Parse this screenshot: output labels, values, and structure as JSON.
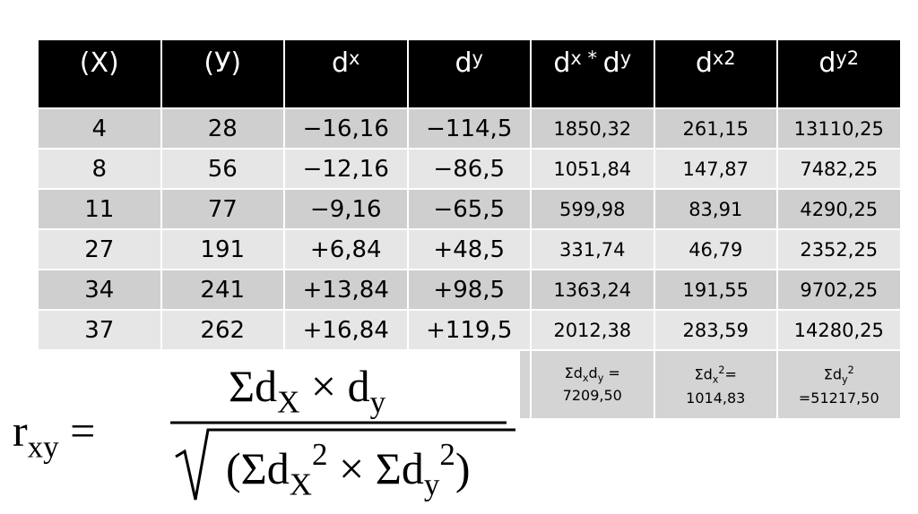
{
  "table": {
    "header": [
      [
        {
          "text": "(X)"
        }
      ],
      [
        {
          "text": "(У)"
        }
      ],
      [
        {
          "text": "d"
        },
        {
          "text": "x",
          "script": "sub"
        }
      ],
      [
        {
          "text": "d"
        },
        {
          "text": "y",
          "script": "sub"
        }
      ],
      [
        {
          "text": "d"
        },
        {
          "text": "x",
          "script": "sub"
        },
        {
          "text": " * ",
          "script": "sub"
        },
        {
          "text": "d"
        },
        {
          "text": "y",
          "script": "sub"
        }
      ],
      [
        {
          "text": "d"
        },
        {
          "text": "x",
          "script": "sub"
        },
        {
          "text": "2",
          "script": "sup"
        }
      ],
      [
        {
          "text": "d"
        },
        {
          "text": "y",
          "script": "sub"
        },
        {
          "text": "2",
          "script": "sup"
        }
      ]
    ],
    "rows": [
      [
        "4",
        "28",
        "−16,16",
        "−114,5",
        "1850,32",
        "261,15",
        "13110,25"
      ],
      [
        "8",
        "56",
        "−12,16",
        "−86,5",
        "1051,84",
        "147,87",
        "7482,25"
      ],
      [
        "11",
        "77",
        "−9,16",
        "−65,5",
        "599,98",
        "83,91",
        "4290,25"
      ],
      [
        "27",
        "191",
        "+6,84",
        "+48,5",
        "331,74",
        "46,79",
        "2352,25"
      ],
      [
        "34",
        "241",
        "+13,84",
        "+98,5",
        "1363,24",
        "191,55",
        "9702,25"
      ],
      [
        "37",
        "262",
        "+16,84",
        "+119,5",
        "2012,38",
        "283,59",
        "14280,25"
      ]
    ],
    "sums": [
      [
        [
          {
            "text": "Σd"
          },
          {
            "text": "x",
            "script": "sub"
          },
          {
            "text": "d"
          },
          {
            "text": "y",
            "script": "sub"
          },
          {
            "text": " ="
          }
        ],
        [
          {
            "text": "7209,50"
          }
        ]
      ],
      [
        [
          {
            "text": "Σd"
          },
          {
            "text": "x",
            "script": "sub"
          },
          {
            "text": "2",
            "script": "sup"
          },
          {
            "text": "="
          }
        ],
        [
          {
            "text": "1014,83"
          }
        ]
      ],
      [
        [
          {
            "text": "Σd"
          },
          {
            "text": "y",
            "script": "sub"
          },
          {
            "text": "2",
            "script": "sup"
          }
        ],
        [
          {
            "text": "=51217,50"
          }
        ]
      ]
    ]
  },
  "formula": {
    "lhs": [
      {
        "text": "r"
      },
      {
        "text": "xy",
        "script": "sub"
      },
      {
        "text": " ="
      }
    ],
    "numerator": [
      {
        "text": "Σd"
      },
      {
        "text": "X",
        "script": "sub"
      },
      {
        "text": " × d"
      },
      {
        "text": "y",
        "script": "sub"
      }
    ],
    "denominator": [
      {
        "text": "(Σd"
      },
      {
        "text": "X",
        "script": "sub"
      },
      {
        "text": "2",
        "script": "sup"
      },
      {
        "text": " × Σd"
      },
      {
        "text": "y",
        "script": "sub"
      },
      {
        "text": "2",
        "script": "sup"
      },
      {
        "text": ")"
      }
    ]
  }
}
